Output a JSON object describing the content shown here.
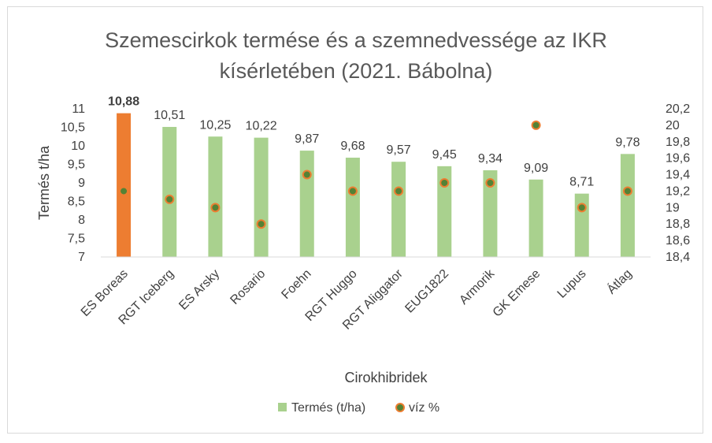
{
  "chart_data": {
    "type": "bar",
    "title_lines": [
      "Szemescirkok termése és a szemnedvessége az IKR",
      "kísérletében (2021. Bábolna)"
    ],
    "xlabel": "Cirokhibridek",
    "ylabel": "Termés t/ha",
    "y2label": "",
    "categories": [
      "ES Boreas",
      "RGT Iceberg",
      "ES Arsky",
      "Rosario",
      "Foehn",
      "RGT Huggo",
      "RGT Aliggator",
      "EUG1822",
      "Armorik",
      "GK Emese",
      "Lupus",
      "Átlag"
    ],
    "series": [
      {
        "name": "Termés (t/ha)",
        "kind": "bar",
        "axis": "left",
        "color": "#a9d18e",
        "highlight_color": "#ed7d31",
        "highlight_index": 0,
        "values": [
          10.88,
          10.51,
          10.25,
          10.22,
          9.87,
          9.68,
          9.57,
          9.45,
          9.34,
          9.09,
          8.71,
          9.78
        ],
        "labels": [
          "10,88",
          "10,51",
          "10,25",
          "10,22",
          "9,87",
          "9,68",
          "9,57",
          "9,45",
          "9,34",
          "9,09",
          "8,71",
          "9,78"
        ]
      },
      {
        "name": "víz %",
        "kind": "scatter",
        "axis": "right",
        "marker_fill": "#548235",
        "marker_stroke": "#ed7d31",
        "values": [
          19.2,
          19.1,
          19.0,
          18.8,
          19.4,
          19.2,
          19.2,
          19.3,
          19.3,
          20.0,
          19.0,
          19.2
        ]
      }
    ],
    "ylim": [
      7,
      11
    ],
    "y2lim": [
      18.4,
      20.2
    ],
    "yticks": [
      "7",
      "7,5",
      "8",
      "8,5",
      "9",
      "9,5",
      "10",
      "10,5",
      "11"
    ],
    "yticks_values": [
      7,
      7.5,
      8,
      8.5,
      9,
      9.5,
      10,
      10.5,
      11
    ],
    "y2ticks": [
      "18,4",
      "18,6",
      "18,8",
      "19",
      "19,2",
      "19,4",
      "19,6",
      "19,8",
      "20",
      "20,2"
    ],
    "y2ticks_values": [
      18.4,
      18.6,
      18.8,
      19.0,
      19.2,
      19.4,
      19.6,
      19.8,
      20.0,
      20.2
    ],
    "grid": false,
    "legend_position": "bottom"
  }
}
